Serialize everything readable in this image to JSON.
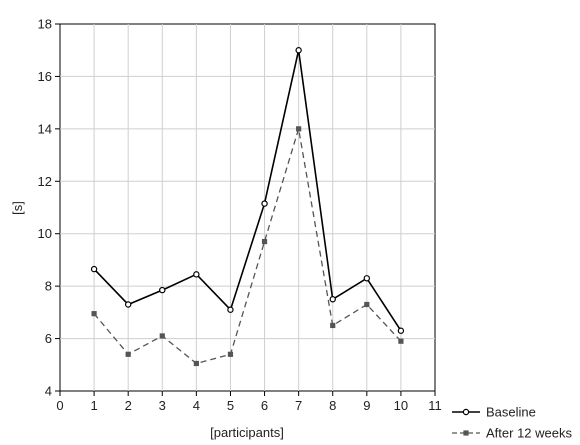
{
  "chart_data": {
    "type": "line",
    "title": "",
    "xlabel": "[participants]",
    "ylabel": "[s]",
    "xlim": [
      0,
      11
    ],
    "ylim": [
      4,
      18
    ],
    "xticks": [
      "0",
      "1",
      "2",
      "3",
      "4",
      "5",
      "6",
      "7",
      "8",
      "9",
      "10",
      "11"
    ],
    "yticks": [
      "4",
      "6",
      "8",
      "10",
      "12",
      "14",
      "16",
      "18"
    ],
    "grid": true,
    "legend_position": "bottom-right",
    "x": [
      1,
      2,
      3,
      4,
      5,
      6,
      7,
      8,
      9,
      10
    ],
    "series": [
      {
        "name": "Baseline",
        "values": [
          8.65,
          7.3,
          7.85,
          8.45,
          7.1,
          11.15,
          17.0,
          7.5,
          8.3,
          6.3
        ],
        "color": "#000000",
        "line_style": "solid",
        "marker": "open-circle"
      },
      {
        "name": "After 12 weeks",
        "values": [
          6.95,
          5.4,
          6.1,
          5.05,
          5.4,
          9.7,
          14.0,
          6.5,
          7.3,
          5.9
        ],
        "color": "#555555",
        "line_style": "dashed",
        "marker": "filled-square"
      }
    ]
  }
}
